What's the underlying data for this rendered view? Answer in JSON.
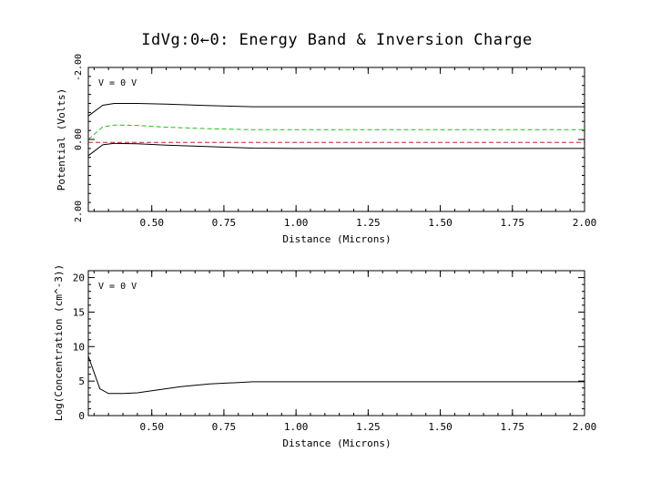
{
  "title": "IdVg:0←0: Energy Band & Inversion Charge",
  "colors": {
    "axis": "#000000",
    "band": "#000000",
    "fermi": "#cc2020",
    "intrinsic": "#1fbf1f",
    "concentration": "#000000"
  },
  "chart_data": [
    {
      "type": "line",
      "annotation": "V = 0 V",
      "xlabel": "Distance (Microns)",
      "ylabel": "Potential (Volts)",
      "xlim": [
        0.28,
        2.0
      ],
      "ylim": [
        2.0,
        -2.0
      ],
      "y_inverted": true,
      "xticks": [
        0.5,
        0.75,
        1.0,
        1.25,
        1.5,
        1.75,
        2.0
      ],
      "xtick_labels": [
        "0.50",
        "0.75",
        "1.00",
        "1.25",
        "1.50",
        "1.75",
        "2.00"
      ],
      "yticks": [
        -2.0,
        0.0,
        2.0
      ],
      "ytick_labels": [
        "-2.00",
        "0.00",
        "2.00"
      ],
      "grid": false,
      "series": [
        {
          "style": "solid",
          "color": "#000000",
          "x": [
            0.28,
            0.33,
            0.37,
            0.45,
            0.55,
            0.7,
            0.85,
            1.0,
            1.5,
            2.0
          ],
          "y": [
            -0.65,
            -0.95,
            -1.0,
            -1.0,
            -0.98,
            -0.94,
            -0.91,
            -0.91,
            -0.91,
            -0.91
          ]
        },
        {
          "style": "dashed",
          "color": "#1fbf1f",
          "x": [
            0.28,
            0.33,
            0.37,
            0.45,
            0.55,
            0.7,
            0.85,
            1.0,
            1.5,
            2.0
          ],
          "y": [
            0.0,
            -0.35,
            -0.4,
            -0.39,
            -0.34,
            -0.3,
            -0.27,
            -0.27,
            -0.27,
            -0.27
          ]
        },
        {
          "style": "dashed",
          "color": "#cc2020",
          "x": [
            0.28,
            2.0
          ],
          "y": [
            0.08,
            0.08
          ]
        },
        {
          "style": "solid",
          "color": "#000000",
          "x": [
            0.28,
            0.33,
            0.37,
            0.45,
            0.55,
            0.7,
            0.85,
            1.0,
            1.5,
            2.0
          ],
          "y": [
            0.45,
            0.15,
            0.11,
            0.12,
            0.16,
            0.2,
            0.24,
            0.25,
            0.25,
            0.25
          ]
        }
      ]
    },
    {
      "type": "line",
      "annotation": "V = 0 V",
      "xlabel": "Distance (Microns)",
      "ylabel": "Log(Concentration (cm^-3))",
      "xlim": [
        0.28,
        2.0
      ],
      "ylim": [
        0,
        21
      ],
      "xticks": [
        0.5,
        0.75,
        1.0,
        1.25,
        1.5,
        1.75,
        2.0
      ],
      "xtick_labels": [
        "0.50",
        "0.75",
        "1.00",
        "1.25",
        "1.50",
        "1.75",
        "2.00"
      ],
      "yticks": [
        0,
        5,
        10,
        15,
        20
      ],
      "ytick_labels": [
        "0",
        "5",
        "10",
        "15",
        "20"
      ],
      "grid": false,
      "series": [
        {
          "style": "solid",
          "color": "#000000",
          "x": [
            0.28,
            0.32,
            0.35,
            0.4,
            0.45,
            0.5,
            0.55,
            0.6,
            0.7,
            0.8,
            0.85,
            1.0,
            1.5,
            2.0
          ],
          "y": [
            8.6,
            3.9,
            3.2,
            3.2,
            3.3,
            3.6,
            3.9,
            4.2,
            4.6,
            4.8,
            4.9,
            4.9,
            4.9,
            4.9
          ]
        }
      ]
    }
  ]
}
